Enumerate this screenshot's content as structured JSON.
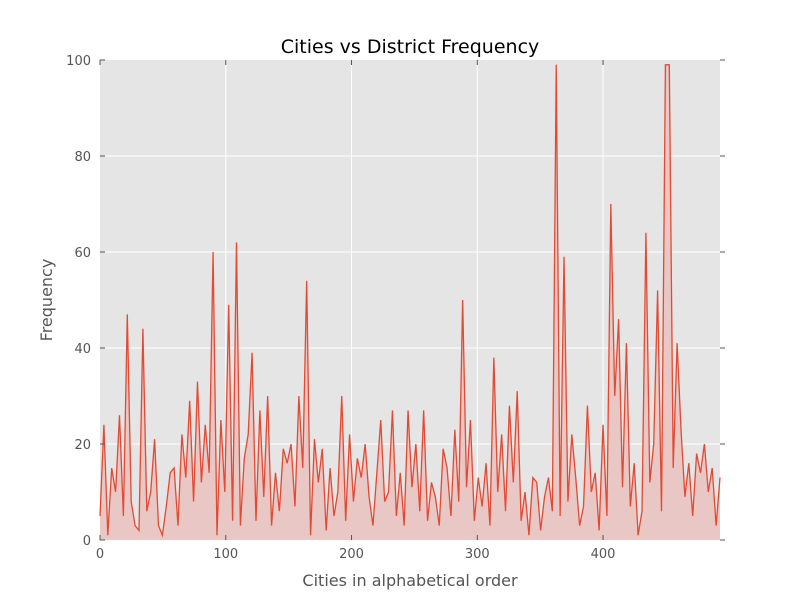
{
  "chart_data": {
    "type": "area",
    "title": "Cities vs District Frequency",
    "xlabel": "Cities in alphabetical order",
    "ylabel": "Frequency",
    "xlim": [
      0,
      493
    ],
    "ylim": [
      0,
      100
    ],
    "xticks": [
      0,
      100,
      200,
      300,
      400
    ],
    "yticks": [
      0,
      20,
      40,
      60,
      80,
      100
    ],
    "grid": true,
    "legend": "none",
    "colors": {
      "line": "#E24A33",
      "fill": "#E9C7C4",
      "plot_background": "#E5E5E5",
      "grid": "#FFFFFF"
    },
    "series": [
      {
        "values": [
          5,
          24,
          1,
          15,
          10,
          26,
          5,
          47,
          8,
          3,
          2,
          44,
          6,
          10,
          21,
          3,
          1,
          7,
          14,
          15,
          3,
          22,
          13,
          29,
          8,
          33,
          12,
          24,
          14,
          60,
          1,
          25,
          10,
          49,
          4,
          62,
          3,
          17,
          22,
          39,
          4,
          27,
          9,
          30,
          3,
          14,
          6,
          19,
          16,
          20,
          7,
          30,
          15,
          54,
          1,
          21,
          12,
          19,
          2,
          15,
          5,
          10,
          30,
          4,
          22,
          8,
          17,
          13,
          20,
          9,
          3,
          14,
          25,
          8,
          10,
          27,
          5,
          14,
          3,
          27,
          11,
          20,
          6,
          27,
          4,
          12,
          9,
          3,
          19,
          15,
          5,
          23,
          8,
          50,
          11,
          25,
          4,
          13,
          7,
          16,
          3,
          38,
          10,
          22,
          6,
          28,
          12,
          31,
          4,
          10,
          1,
          13,
          12,
          2,
          9,
          13,
          6,
          99,
          5,
          59,
          8,
          22,
          13,
          3,
          7,
          28,
          10,
          14,
          2,
          24,
          5,
          70,
          30,
          46,
          11,
          41,
          7,
          16,
          1,
          6,
          64,
          12,
          20,
          52,
          6,
          99,
          99,
          15,
          41,
          23,
          9,
          16,
          5,
          18,
          14,
          20,
          10,
          15,
          3,
          13
        ]
      }
    ]
  }
}
